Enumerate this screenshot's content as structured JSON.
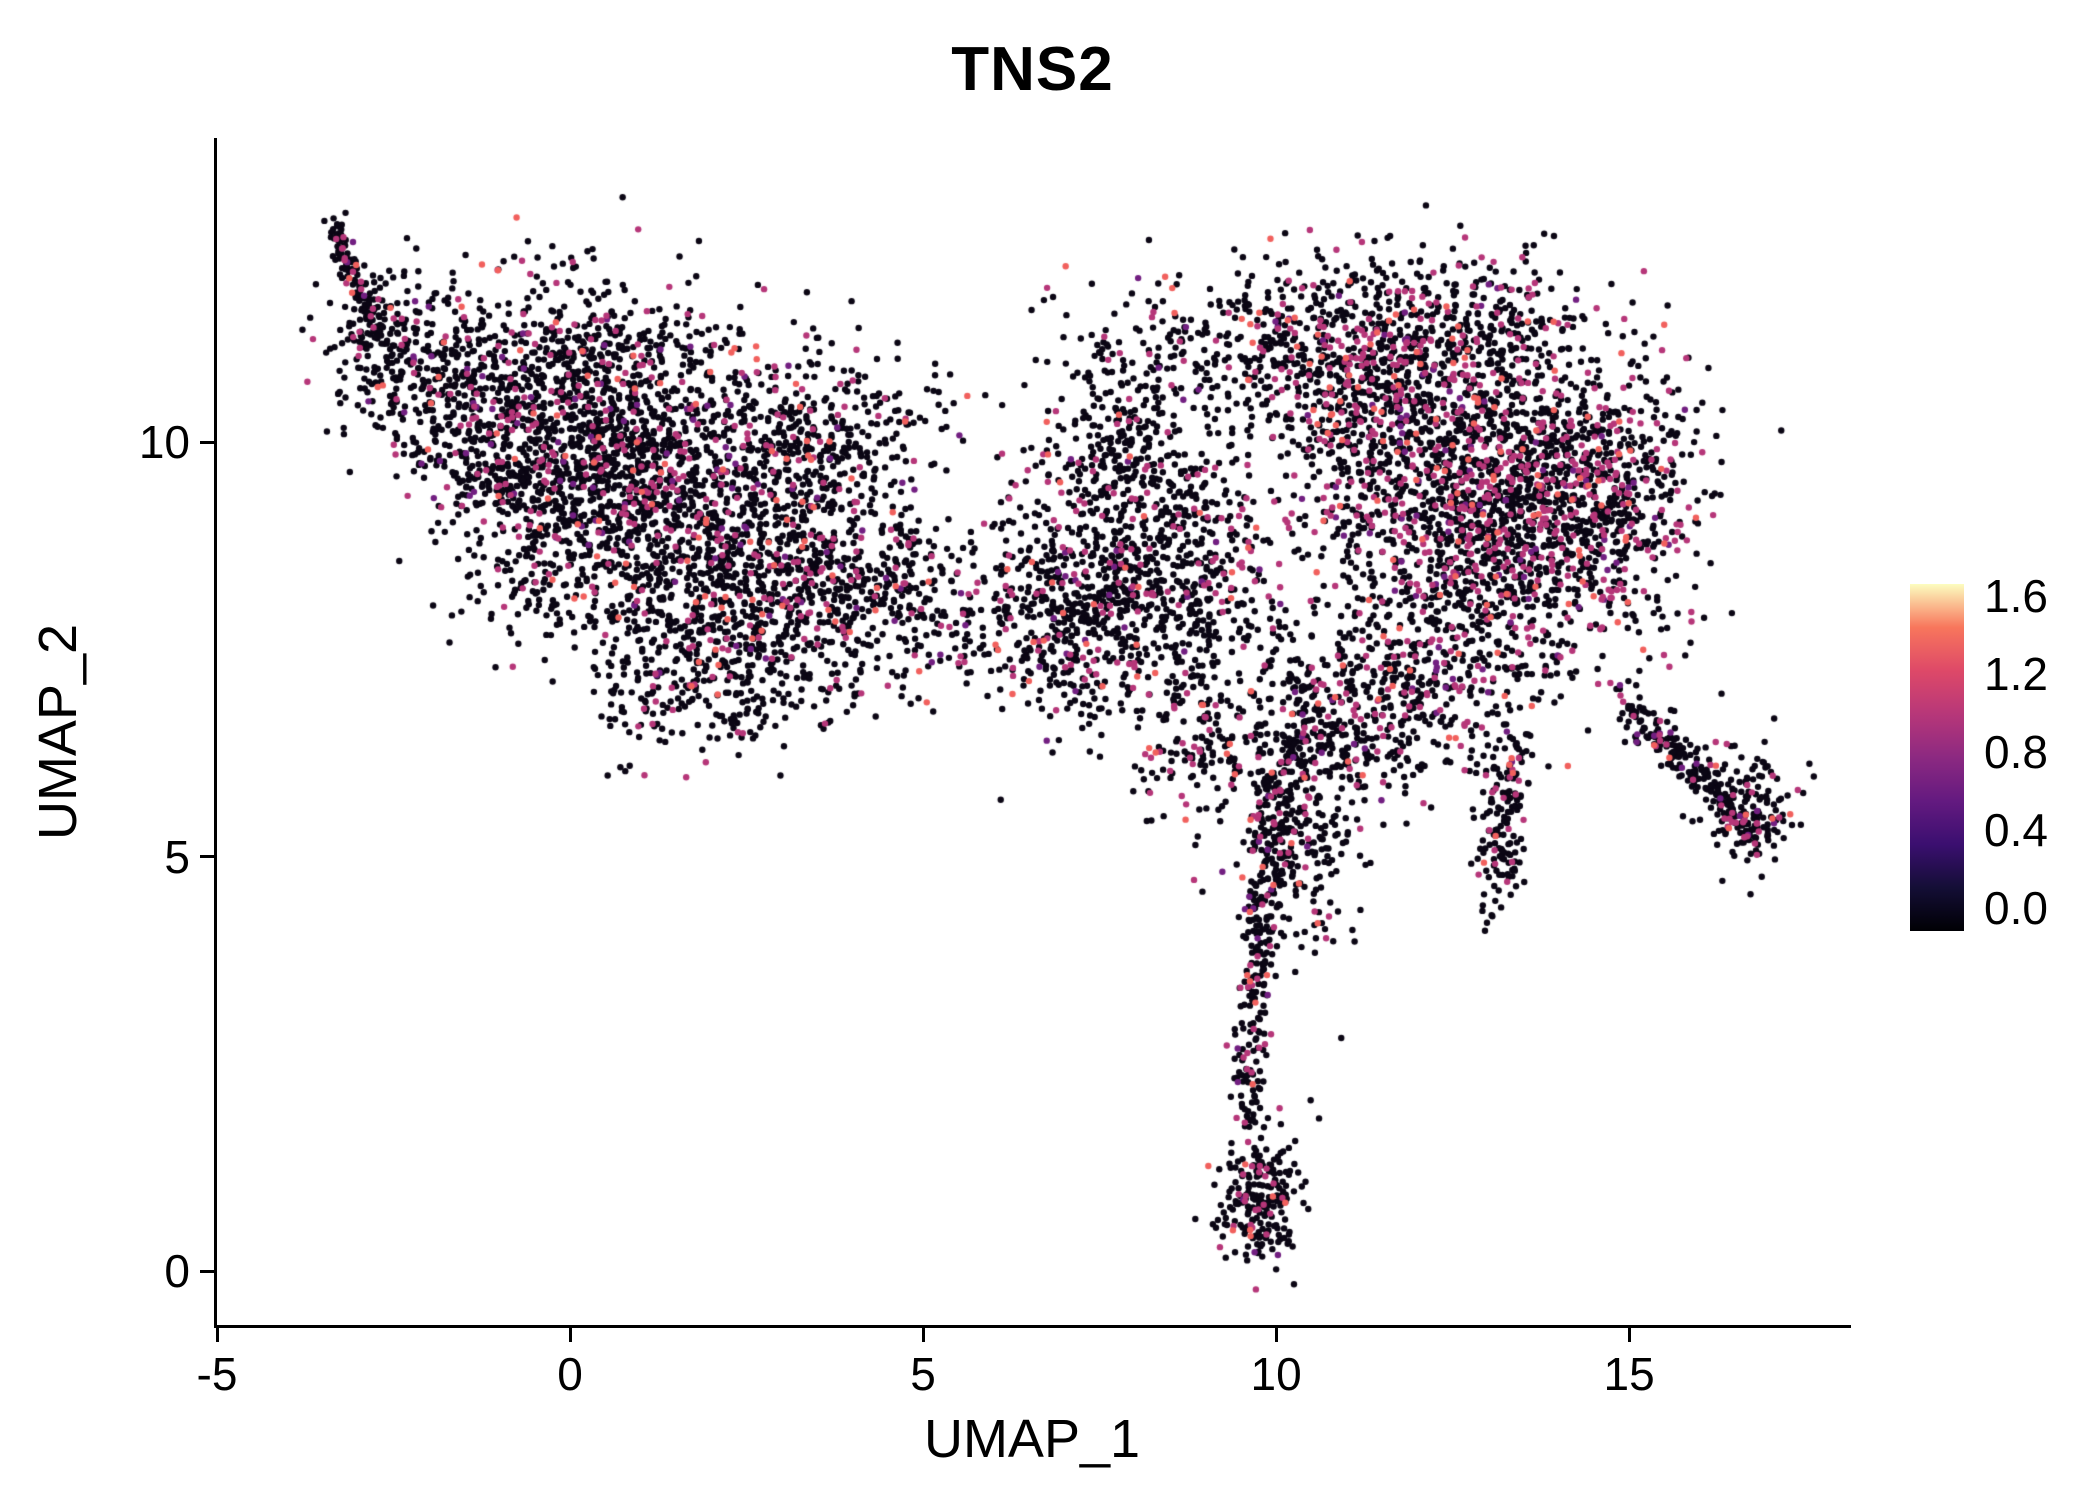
{
  "chart_data": {
    "type": "scatter",
    "title": "TNS2",
    "xlabel": "UMAP_1",
    "ylabel": "UMAP_2",
    "xlim": [
      -5,
      18.1
    ],
    "ylim": [
      -0.65,
      13.65
    ],
    "grid": false,
    "background": "#FFFFFF",
    "x_ticks": [
      {
        "v": -5,
        "label": "-5"
      },
      {
        "v": 0,
        "label": "0"
      },
      {
        "v": 5,
        "label": "5"
      },
      {
        "v": 10,
        "label": "10"
      },
      {
        "v": 15,
        "label": "15"
      }
    ],
    "y_ticks": [
      {
        "v": 0,
        "label": "0"
      },
      {
        "v": 5,
        "label": "5"
      },
      {
        "v": 10,
        "label": "10"
      }
    ],
    "legend": {
      "type": "colorbar",
      "position": "right",
      "range": [
        -0.12,
        1.66
      ],
      "colormap": "magma",
      "ticks": [
        {
          "v": 1.6,
          "label": "1.6"
        },
        {
          "v": 1.2,
          "label": "1.2"
        },
        {
          "v": 0.8,
          "label": "0.8"
        },
        {
          "v": 0.4,
          "label": "0.4"
        },
        {
          "v": 0.0,
          "label": "0.0"
        }
      ],
      "stops": [
        {
          "at": 0.0,
          "c": "#000004"
        },
        {
          "at": 0.125,
          "c": "#140E36"
        },
        {
          "at": 0.25,
          "c": "#3B0F70"
        },
        {
          "at": 0.375,
          "c": "#641A80"
        },
        {
          "at": 0.5,
          "c": "#8C2981"
        },
        {
          "at": 0.625,
          "c": "#B73779"
        },
        {
          "at": 0.75,
          "c": "#DE4968"
        },
        {
          "at": 0.875,
          "c": "#F8765C"
        },
        {
          "at": 1.0,
          "c": "#FCFDBF"
        }
      ]
    },
    "point_radius_px": 3.2,
    "point_mixes": {
      "default": [
        [
          "#0B0614",
          0.85
        ],
        [
          "#721F81",
          0.025
        ],
        [
          "#B63679",
          0.1
        ],
        [
          "#F1605D",
          0.025
        ]
      ],
      "rich": [
        [
          "#0B0614",
          0.75
        ],
        [
          "#721F81",
          0.03
        ],
        [
          "#B63679",
          0.18
        ],
        [
          "#F1605D",
          0.04
        ]
      ]
    },
    "clusters": [
      {
        "shape": "line",
        "x1": -3.35,
        "y1": 12.65,
        "x2": -2.75,
        "y2": 11.35,
        "w": 0.14,
        "n": 110
      },
      {
        "shape": "gauss",
        "cx": -2.5,
        "cy": 11.0,
        "sx": 0.45,
        "sy": 0.55,
        "n": 220
      },
      {
        "shape": "gauss",
        "cx": -1.3,
        "cy": 10.45,
        "sx": 0.7,
        "sy": 0.6,
        "n": 330
      },
      {
        "shape": "gauss",
        "cx": 0.2,
        "cy": 9.9,
        "sx": 0.95,
        "sy": 0.8,
        "n": 820
      },
      {
        "shape": "gauss",
        "cx": 1.6,
        "cy": 9.1,
        "sx": 1.0,
        "sy": 0.9,
        "n": 860
      },
      {
        "shape": "gauss",
        "cx": 3.0,
        "cy": 8.3,
        "sx": 0.85,
        "sy": 0.8,
        "n": 500
      },
      {
        "shape": "gauss",
        "cx": 2.0,
        "cy": 7.2,
        "sx": 0.8,
        "sy": 0.5,
        "n": 260
      },
      {
        "shape": "gauss",
        "cx": 3.6,
        "cy": 10.1,
        "sx": 0.9,
        "sy": 0.5,
        "n": 330
      },
      {
        "shape": "gauss",
        "cx": 4.4,
        "cy": 8.3,
        "sx": 0.7,
        "sy": 0.6,
        "n": 220
      },
      {
        "shape": "gauss",
        "cx": -0.2,
        "cy": 11.5,
        "sx": 1.1,
        "sy": 0.45,
        "n": 150
      },
      {
        "shape": "gauss",
        "cx": 0.9,
        "cy": 10.9,
        "sx": 0.8,
        "sy": 0.4,
        "n": 110
      },
      {
        "shape": "gauss",
        "cx": -0.6,
        "cy": 8.9,
        "sx": 0.7,
        "sy": 0.7,
        "n": 170
      },
      {
        "shape": "gauss",
        "cx": 5.7,
        "cy": 7.7,
        "sx": 0.8,
        "sy": 0.5,
        "n": 100
      },
      {
        "shape": "gauss",
        "cx": 6.4,
        "cy": 8.5,
        "sx": 0.6,
        "sy": 0.5,
        "n": 60
      },
      {
        "shape": "gauss",
        "cx": 8.3,
        "cy": 8.4,
        "sx": 0.95,
        "sy": 0.85,
        "n": 780
      },
      {
        "shape": "gauss",
        "cx": 7.1,
        "cy": 7.9,
        "sx": 0.5,
        "sy": 0.7,
        "n": 220
      },
      {
        "shape": "gauss",
        "cx": 8.6,
        "cy": 10.9,
        "sx": 1.0,
        "sy": 0.55,
        "n": 240
      },
      {
        "shape": "gauss",
        "cx": 7.8,
        "cy": 9.8,
        "sx": 0.5,
        "sy": 0.6,
        "n": 140
      },
      {
        "shape": "gauss",
        "cx": 8.9,
        "cy": 6.4,
        "sx": 0.45,
        "sy": 0.5,
        "n": 130
      },
      {
        "shape": "gauss",
        "cx": 10.2,
        "cy": 11.3,
        "sx": 0.7,
        "sy": 0.5,
        "n": 160
      },
      {
        "shape": "gauss",
        "cx": 12.9,
        "cy": 9.4,
        "sx": 1.25,
        "sy": 1.0,
        "n": 1950,
        "mix": "rich"
      },
      {
        "shape": "gauss",
        "cx": 12.4,
        "cy": 11.3,
        "sx": 0.95,
        "sy": 0.55,
        "n": 380,
        "mix": "rich"
      },
      {
        "shape": "gauss",
        "cx": 11.0,
        "cy": 10.7,
        "sx": 0.55,
        "sy": 0.6,
        "n": 240,
        "mix": "rich"
      },
      {
        "shape": "gauss",
        "cx": 14.8,
        "cy": 9.3,
        "sx": 0.6,
        "sy": 0.8,
        "n": 330,
        "mix": "rich"
      },
      {
        "shape": "gauss",
        "cx": 12.1,
        "cy": 7.1,
        "sx": 1.0,
        "sy": 0.6,
        "n": 430,
        "mix": "rich"
      },
      {
        "shape": "gauss",
        "cx": 10.7,
        "cy": 6.4,
        "sx": 0.55,
        "sy": 0.55,
        "n": 220
      },
      {
        "shape": "line",
        "x1": 13.35,
        "y1": 6.3,
        "x2": 13.1,
        "y2": 4.5,
        "w": 0.3,
        "n": 150
      },
      {
        "shape": "gauss",
        "cx": 10.2,
        "cy": 5.6,
        "sx": 0.5,
        "sy": 0.6,
        "n": 110
      },
      {
        "shape": "line",
        "x1": 14.9,
        "y1": 6.9,
        "x2": 16.85,
        "y2": 5.25,
        "w": 0.22,
        "n": 240
      },
      {
        "shape": "gauss",
        "cx": 16.7,
        "cy": 5.6,
        "sx": 0.3,
        "sy": 0.4,
        "n": 120
      },
      {
        "shape": "line",
        "x1": 10.0,
        "y1": 6.1,
        "x2": 9.75,
        "y2": 3.9,
        "w": 0.32,
        "n": 190
      },
      {
        "shape": "line",
        "x1": 9.75,
        "y1": 3.9,
        "x2": 9.6,
        "y2": 1.9,
        "w": 0.22,
        "n": 120
      },
      {
        "shape": "gauss",
        "cx": 9.75,
        "cy": 0.85,
        "sx": 0.3,
        "sy": 0.42,
        "n": 230
      },
      {
        "shape": "gauss",
        "cx": 10.45,
        "cy": 4.9,
        "sx": 0.35,
        "sy": 0.6,
        "n": 80
      }
    ]
  }
}
